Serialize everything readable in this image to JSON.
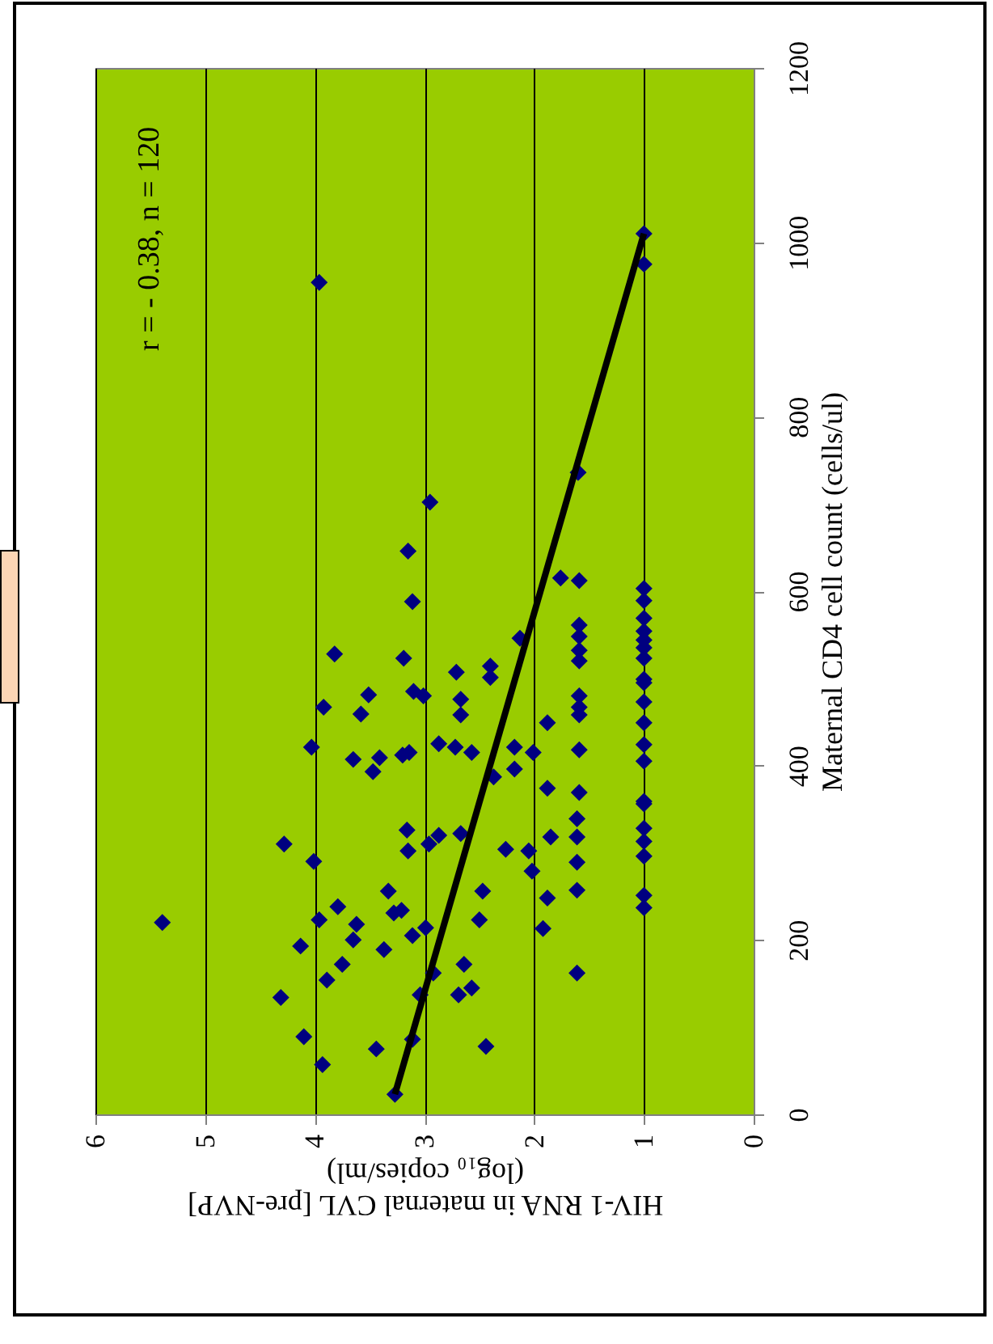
{
  "chart_data": {
    "type": "scatter",
    "xlabel": "HIV-1 RNA in maternal CVL [pre-NVP]\n(log₁₀ copies/ml)",
    "ylabel": "Maternal CD4 cell count (cells/ul)",
    "annotations": [
      "r = - 0.38, n = 120"
    ],
    "xlim": [
      6,
      0
    ],
    "xticks": [
      0,
      1,
      2,
      3,
      4,
      5,
      6
    ],
    "ylim": [
      0,
      1200
    ],
    "yticks": [
      0,
      200,
      400,
      600,
      800,
      1000,
      1200
    ],
    "grid": "x",
    "series": [
      {
        "color": "#000080",
        "marker": "diamond",
        "x": [
          3.96,
          1.0,
          1.0,
          1.6,
          2.95,
          3.15,
          3.11,
          3.19,
          3.1,
          3.01,
          3.14,
          1.76,
          1.59,
          1.0,
          1.0,
          1.0,
          1.0,
          1.0,
          1.0,
          1.0,
          1.0,
          1.0,
          1.0,
          1.0,
          1.0,
          1.0,
          1.0,
          1.0,
          1.0,
          1.0,
          1.0,
          1.0,
          1.0,
          2.13,
          1.59,
          1.59,
          1.59,
          1.59,
          2.71,
          2.4,
          2.4,
          2.67,
          2.67,
          1.59,
          1.59,
          1.59,
          1.88,
          2.87,
          2.72,
          2.57,
          2.18,
          2.01,
          1.59,
          2.37,
          2.18,
          1.88,
          1.59,
          1.61,
          1.61,
          1.61,
          1.61,
          1.61,
          1.85,
          2.02,
          2.05,
          2.26,
          1.88,
          1.92,
          2.47,
          2.5,
          2.67,
          2.87,
          2.96,
          3.16,
          3.15,
          3.11,
          2.99,
          2.64,
          2.92,
          3.04,
          2.69,
          2.57,
          3.11,
          2.44,
          3.27,
          5.39,
          4.28,
          4.01,
          3.33,
          3.21,
          3.28,
          3.79,
          3.96,
          3.62,
          3.65,
          4.13,
          3.37,
          3.75,
          3.89,
          4.31,
          4.1,
          3.44,
          3.93,
          3.82,
          3.51,
          3.92,
          3.58,
          4.03,
          3.65,
          3.47,
          3.41,
          3.2
        ],
        "values": [
          954,
          1010,
          975,
          736,
          702,
          646,
          588,
          523,
          485,
          480,
          415,
          615,
          612,
          603,
          589,
          569,
          554,
          544,
          535,
          523,
          499,
          495,
          473,
          449,
          424,
          405,
          359,
          356,
          328,
          313,
          296,
          251,
          237,
          546,
          561,
          548,
          532,
          520,
          507,
          514,
          501,
          476,
          458,
          480,
          467,
          458,
          449,
          425,
          421,
          415,
          421,
          415,
          418,
          387,
          396,
          374,
          369,
          339,
          318,
          289,
          257,
          162,
          318,
          279,
          302,
          304,
          248,
          213,
          256,
          223,
          322,
          320,
          310,
          326,
          302,
          205,
          214,
          172,
          162,
          137,
          137,
          145,
          86,
          78,
          23,
          220,
          310,
          290,
          256,
          234,
          231,
          238,
          223,
          218,
          200,
          193,
          189,
          172,
          154,
          134,
          89,
          75,
          57,
          528,
          481,
          467,
          459,
          421,
          407,
          393,
          409,
          412
        ]
      },
      {
        "type": "line",
        "marker": "none",
        "color": "#000000",
        "x": [
          3.27,
          1.0
        ],
        "values": [
          23,
          1010
        ]
      }
    ]
  }
}
